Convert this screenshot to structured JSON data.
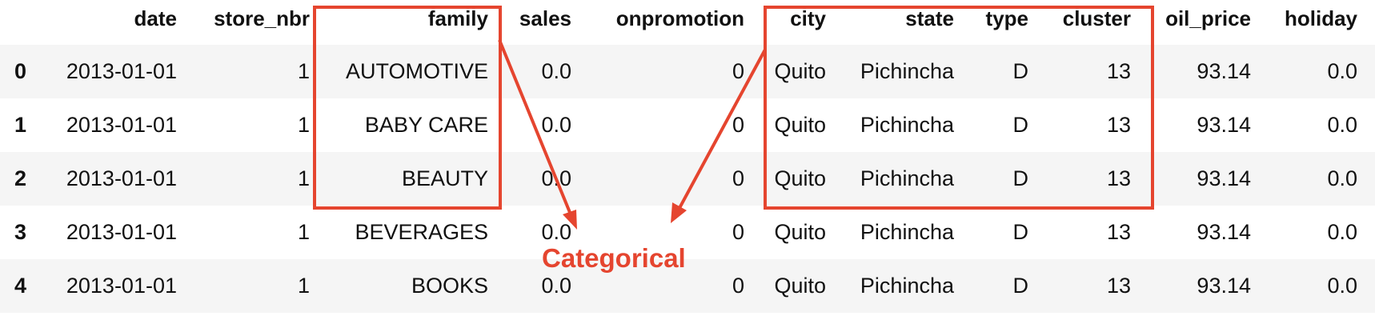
{
  "table": {
    "columns": [
      "date",
      "store_nbr",
      "family",
      "sales",
      "onpromotion",
      "city",
      "state",
      "type",
      "cluster",
      "oil_price",
      "holiday"
    ],
    "rows": [
      {
        "index": "0",
        "date": "2013-01-01",
        "store_nbr": "1",
        "family": "AUTOMOTIVE",
        "sales": "0.0",
        "onpromotion": "0",
        "city": "Quito",
        "state": "Pichincha",
        "type": "D",
        "cluster": "13",
        "oil_price": "93.14",
        "holiday": "0.0"
      },
      {
        "index": "1",
        "date": "2013-01-01",
        "store_nbr": "1",
        "family": "BABY CARE",
        "sales": "0.0",
        "onpromotion": "0",
        "city": "Quito",
        "state": "Pichincha",
        "type": "D",
        "cluster": "13",
        "oil_price": "93.14",
        "holiday": "0.0"
      },
      {
        "index": "2",
        "date": "2013-01-01",
        "store_nbr": "1",
        "family": "BEAUTY",
        "sales": "0.0",
        "onpromotion": "0",
        "city": "Quito",
        "state": "Pichincha",
        "type": "D",
        "cluster": "13",
        "oil_price": "93.14",
        "holiday": "0.0"
      },
      {
        "index": "3",
        "date": "2013-01-01",
        "store_nbr": "1",
        "family": "BEVERAGES",
        "sales": "0.0",
        "onpromotion": "0",
        "city": "Quito",
        "state": "Pichincha",
        "type": "D",
        "cluster": "13",
        "oil_price": "93.14",
        "holiday": "0.0"
      },
      {
        "index": "4",
        "date": "2013-01-01",
        "store_nbr": "1",
        "family": "BOOKS",
        "sales": "0.0",
        "onpromotion": "0",
        "city": "Quito",
        "state": "Pichincha",
        "type": "D",
        "cluster": "13",
        "oil_price": "93.14",
        "holiday": "0.0"
      }
    ]
  },
  "annotation": {
    "label": "Categorical",
    "color": "#e5452f"
  }
}
